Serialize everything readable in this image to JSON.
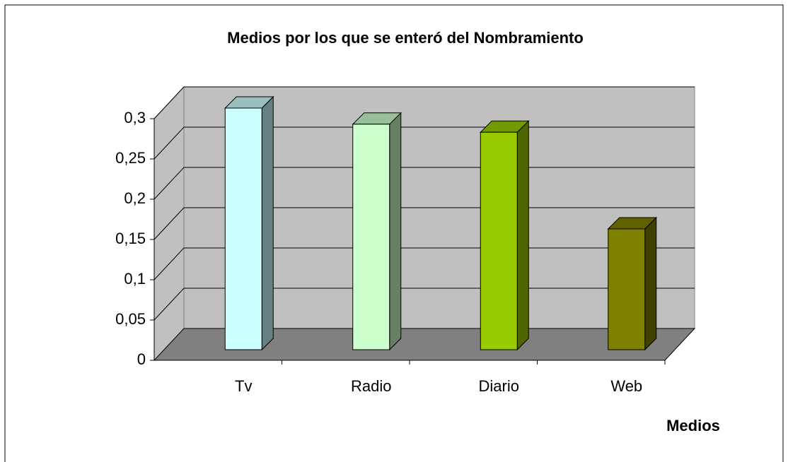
{
  "chart_data": {
    "type": "bar3d",
    "title": "Medios por los que se enteró del Nombramiento",
    "x_label": "Medios",
    "categories": [
      "Tv",
      "Radio",
      "Diario",
      "Web"
    ],
    "values": [
      0.3,
      0.28,
      0.27,
      0.15
    ],
    "colors": [
      "#ccffff",
      "#ccffcc",
      "#99cc00",
      "#808000"
    ],
    "ylim": [
      0,
      0.3
    ],
    "yticks": [
      0,
      {
        "value": 0.05,
        "label": "0,05"
      },
      {
        "value": 0.1,
        "label": "0,1"
      },
      {
        "value": 0.15,
        "label": "0,15"
      },
      {
        "value": 0.2,
        "label": "0,2"
      },
      {
        "value": 0.25,
        "label": "0,25"
      },
      {
        "value": 0.3,
        "label": "0,3"
      }
    ],
    "grid": true
  }
}
